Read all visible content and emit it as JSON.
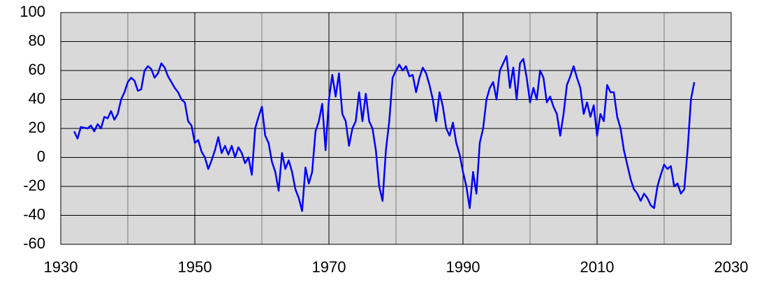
{
  "chart_data": {
    "type": "line",
    "x": [
      1932,
      1932.5,
      1933,
      1934,
      1934.5,
      1935,
      1935.5,
      1936,
      1936.5,
      1937,
      1937.5,
      1938,
      1938.5,
      1939,
      1939.5,
      1940,
      1940.5,
      1941,
      1941.5,
      1942,
      1942.5,
      1943,
      1943.5,
      1944,
      1944.5,
      1945,
      1945.5,
      1946,
      1946.5,
      1947,
      1947.5,
      1948,
      1948.5,
      1949,
      1949.5,
      1950,
      1950.5,
      1951,
      1951.5,
      1952,
      1952.5,
      1953,
      1953.5,
      1954,
      1954.5,
      1955,
      1955.5,
      1956,
      1956.5,
      1957,
      1957.5,
      1958,
      1958.5,
      1959,
      1959.5,
      1960,
      1960.5,
      1961,
      1961.5,
      1962,
      1962.5,
      1963,
      1963.5,
      1964,
      1964.5,
      1965,
      1965.5,
      1966,
      1966.5,
      1967,
      1967.5,
      1968,
      1968.5,
      1969,
      1969.5,
      1970,
      1970.5,
      1971,
      1971.5,
      1972,
      1972.5,
      1973,
      1973.5,
      1974,
      1974.5,
      1975,
      1975.5,
      1976,
      1976.5,
      1977,
      1977.5,
      1978,
      1978.5,
      1979,
      1979.5,
      1980,
      1980.5,
      1981,
      1981.5,
      1982,
      1982.5,
      1983,
      1983.5,
      1984,
      1984.5,
      1985,
      1985.5,
      1986,
      1986.5,
      1987,
      1987.5,
      1988,
      1988.5,
      1989,
      1989.5,
      1990,
      1990.5,
      1991,
      1991.5,
      1992,
      1992.5,
      1993,
      1993.5,
      1994,
      1994.5,
      1995,
      1995.5,
      1996,
      1996.5,
      1997,
      1997.5,
      1998,
      1998.5,
      1999,
      1999.5,
      2000,
      2000.5,
      2001,
      2001.5,
      2002,
      2002.5,
      2003,
      2003.5,
      2004,
      2004.5,
      2005,
      2005.5,
      2006,
      2006.5,
      2007,
      2007.5,
      2008,
      2008.5,
      2009,
      2009.5,
      2010,
      2010.5,
      2011,
      2011.5,
      2012,
      2012.5,
      2013,
      2013.5,
      2014,
      2014.5,
      2015,
      2015.5,
      2016,
      2016.5,
      2017,
      2017.5,
      2018,
      2018.5,
      2019,
      2019.5,
      2020,
      2020.5,
      2021,
      2021.5,
      2022,
      2022.5,
      2023,
      2023.5,
      2024,
      2024.5
    ],
    "series": [
      {
        "color": "#0000ff",
        "values": [
          18,
          13,
          21,
          20,
          22,
          18,
          23,
          20,
          28,
          27,
          32,
          26,
          30,
          40,
          45,
          52,
          55,
          53,
          46,
          47,
          60,
          63,
          61,
          55,
          58,
          65,
          62,
          56,
          52,
          48,
          45,
          40,
          38,
          25,
          22,
          10,
          12,
          4,
          0,
          -8,
          -2,
          5,
          14,
          3,
          8,
          2,
          8,
          0,
          7,
          3,
          -4,
          0,
          -12,
          20,
          28,
          35,
          15,
          10,
          -3,
          -10,
          -23,
          3,
          -8,
          -2,
          -10,
          -22,
          -28,
          -37,
          -7,
          -18,
          -10,
          18,
          25,
          37,
          5,
          40,
          57,
          42,
          58,
          30,
          25,
          8,
          20,
          25,
          45,
          25,
          44,
          25,
          20,
          5,
          -20,
          -30,
          5,
          25,
          55,
          60,
          64,
          60,
          63,
          56,
          57,
          45,
          55,
          62,
          58,
          50,
          40,
          25,
          45,
          35,
          20,
          15,
          24,
          10,
          2,
          -10,
          -20,
          -35,
          -10,
          -25,
          10,
          20,
          40,
          48,
          52,
          40,
          60,
          65,
          70,
          48,
          62,
          40,
          65,
          68,
          55,
          38,
          48,
          40,
          60,
          55,
          38,
          42,
          35,
          30,
          15,
          30,
          50,
          56,
          63,
          55,
          48,
          30,
          38,
          28,
          36,
          15,
          30,
          25,
          50,
          45,
          45,
          28,
          20,
          5,
          -5,
          -15,
          -22,
          -25,
          -30,
          -25,
          -28,
          -33,
          -35,
          -20,
          -12,
          -5,
          -8,
          -6,
          -20,
          -18,
          -25,
          -22,
          5,
          40,
          52
        ]
      }
    ],
    "xlim": [
      1930,
      2030
    ],
    "xticks": [
      1930,
      1950,
      1970,
      1990,
      2010,
      2030
    ],
    "x_minor_ticks": [
      1940,
      1960,
      1980,
      2000,
      2020
    ],
    "ylim": [
      -60,
      100
    ],
    "yticks": [
      -60,
      -40,
      -20,
      0,
      20,
      40,
      60,
      80,
      100
    ],
    "grid": true
  }
}
